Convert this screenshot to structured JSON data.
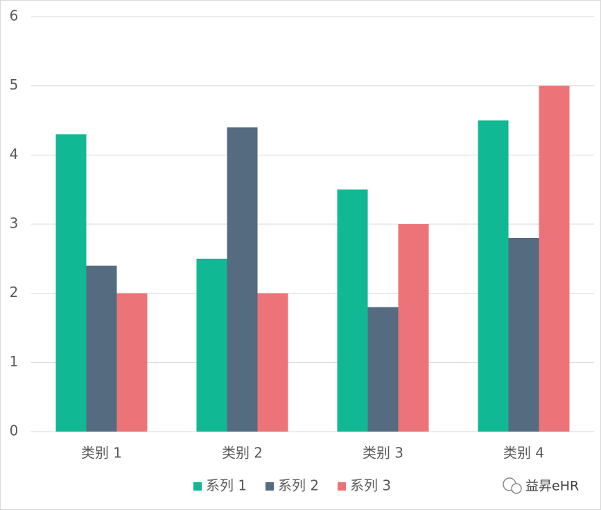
{
  "chart_data": {
    "type": "bar",
    "categories": [
      "类别 1",
      "类别 2",
      "类别 3",
      "类别 4"
    ],
    "series": [
      {
        "name": "系列 1",
        "color": "#10b893",
        "values": [
          4.3,
          2.5,
          3.5,
          4.5
        ]
      },
      {
        "name": "系列 2",
        "color": "#546b80",
        "values": [
          2.4,
          4.4,
          1.8,
          2.8
        ]
      },
      {
        "name": "系列 3",
        "color": "#ec7479",
        "values": [
          2,
          2,
          3,
          5
        ]
      }
    ],
    "ylim": [
      0,
      6
    ],
    "yticks": [
      0,
      1,
      2,
      3,
      4,
      5,
      6
    ],
    "grid": true,
    "legend": "bottom",
    "watermark": "益昇eHR"
  }
}
